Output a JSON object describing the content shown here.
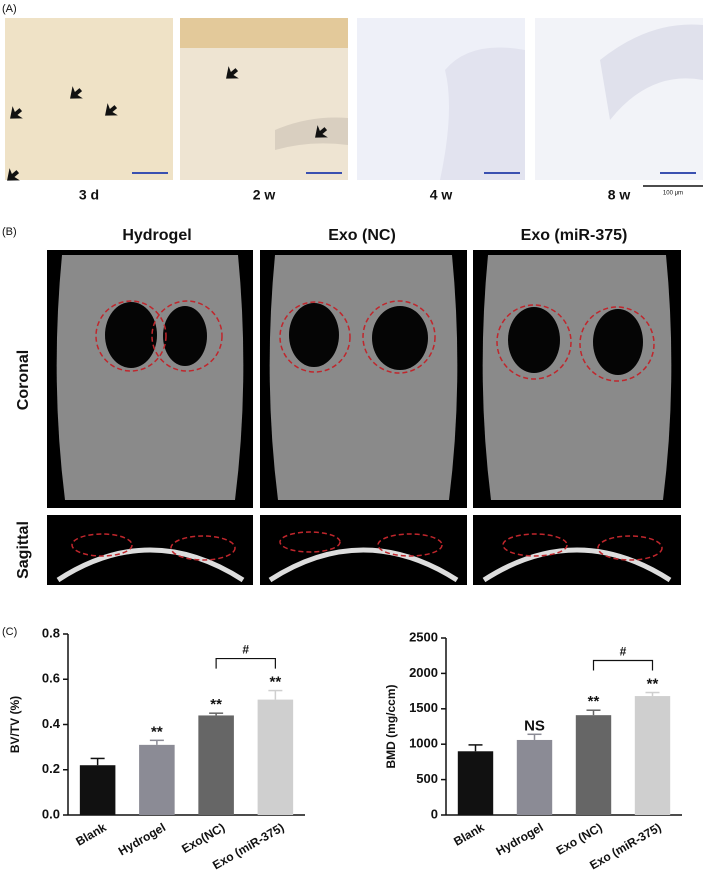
{
  "panel_a": {
    "label": "(A)",
    "times": [
      "3 d",
      "2 w",
      "4 w",
      "8 w"
    ],
    "scale_bar": "100 μm"
  },
  "panel_b": {
    "label": "(B)",
    "groups": [
      "Hydrogel",
      "Exo (NC)",
      "Exo (miR-375)"
    ],
    "views": [
      "Coronal",
      "Sagittal"
    ]
  },
  "panel_c": {
    "label": "(C)"
  },
  "chart_data": [
    {
      "type": "bar",
      "y_label": "BV/TV (%)",
      "categories": [
        "Blank",
        "Hydrogel",
        "Exo(NC)",
        "Exo (miR-375)"
      ],
      "values": [
        0.22,
        0.31,
        0.44,
        0.51
      ],
      "errors": [
        0.03,
        0.02,
        0.01,
        0.04
      ],
      "colors": [
        "#111111",
        "#8b8b95",
        "#666666",
        "#cfcfcf"
      ],
      "annotations": [
        null,
        "**",
        "**",
        "**"
      ],
      "bracket_label": "#",
      "ylim": [
        0,
        0.8
      ],
      "yticks": [
        {
          "value": 0,
          "label": "0.0"
        },
        0.2,
        0.4,
        0.6,
        0.8
      ]
    },
    {
      "type": "bar",
      "y_label": "BMD (mg/ccm)",
      "categories": [
        "Blank",
        "Hydrogel",
        "Exo (NC)",
        "Exo (miR-375)"
      ],
      "values": [
        900,
        1060,
        1410,
        1680
      ],
      "errors": [
        90,
        80,
        70,
        50
      ],
      "colors": [
        "#111111",
        "#8b8b95",
        "#666666",
        "#cfcfcf"
      ],
      "annotations": [
        null,
        "NS",
        "**",
        "**"
      ],
      "bracket_label": "#",
      "ylim": [
        0,
        2500
      ],
      "yticks": [
        0,
        500,
        1000,
        1500,
        2000,
        2500
      ]
    }
  ]
}
